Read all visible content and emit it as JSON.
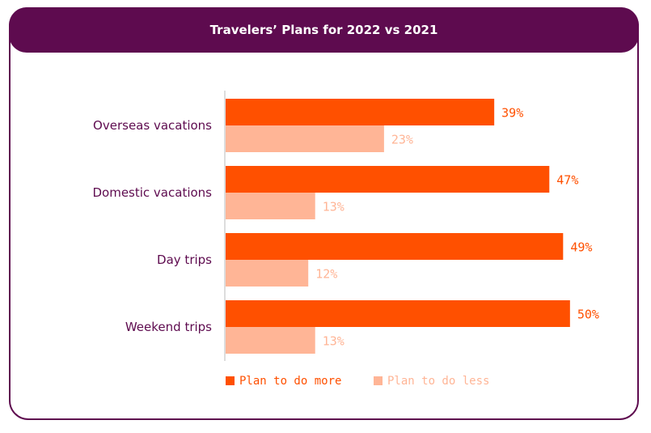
{
  "chart_data": {
    "type": "bar",
    "orientation": "horizontal",
    "title": "Travelers’ Plans for 2022 vs 2021",
    "categories": [
      "Overseas vacations",
      "Domestic vacations",
      "Day trips",
      "Weekend trips"
    ],
    "series": [
      {
        "name": "Plan to do more",
        "values": [
          39,
          47,
          49,
          50
        ],
        "labels": [
          "39%",
          "47%",
          "49%",
          "50%"
        ],
        "color": "#ff5000"
      },
      {
        "name": "Plan to do less",
        "values": [
          23,
          13,
          12,
          13
        ],
        "labels": [
          "23%",
          "13%",
          "12%",
          "13%"
        ],
        "color": "#ffb596"
      }
    ],
    "xlim": [
      0,
      60
    ],
    "grid": false,
    "legend": "bottom"
  },
  "colors": {
    "frame": "#5e0b4f",
    "category_text": "#5e0b4f",
    "axis": "#dddddd"
  }
}
